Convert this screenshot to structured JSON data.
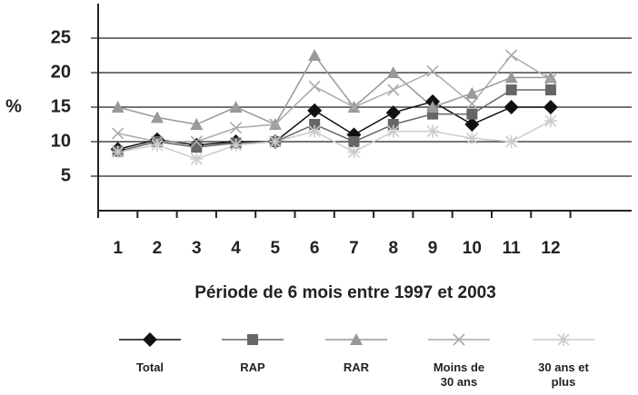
{
  "chart_data": {
    "type": "line",
    "x_label": "Période de 6 mois entre 1997 et 2003",
    "y_label": "%",
    "categories": [
      "1",
      "2",
      "3",
      "4",
      "5",
      "6",
      "7",
      "8",
      "9",
      "10",
      "11",
      "12"
    ],
    "ylim": [
      0,
      30
    ],
    "yticks": [
      5,
      10,
      15,
      20,
      25
    ],
    "grid": true,
    "series": [
      {
        "name": "Total",
        "color": "#111111",
        "marker": "diamond",
        "values": [
          8.9,
          10.3,
          9.5,
          10,
          10,
          14.5,
          11,
          14.2,
          15.8,
          12.5,
          15,
          15
        ]
      },
      {
        "name": "RAP",
        "color": "#666666",
        "marker": "square",
        "values": [
          8.6,
          10,
          9.2,
          9.8,
          10,
          12.5,
          10,
          12.5,
          14,
          14,
          17.5,
          17.5
        ]
      },
      {
        "name": "RAR",
        "color": "#999999",
        "marker": "triangle",
        "values": [
          15,
          13.5,
          12.5,
          15,
          12.5,
          22.5,
          15,
          20,
          15,
          17,
          19.3,
          19.3
        ]
      },
      {
        "name": "Moins de 30 ans",
        "color": "#aaaaaa",
        "marker": "x",
        "values": [
          11.2,
          10,
          10,
          12,
          12.5,
          18,
          15,
          17.5,
          20.2,
          15.5,
          22.5,
          19
        ]
      },
      {
        "name": "30 ans et plus",
        "color": "#cccccc",
        "marker": "star",
        "values": [
          8.5,
          9.5,
          7.5,
          9.5,
          10,
          11.5,
          8.5,
          11.5,
          11.5,
          10.5,
          10,
          13
        ]
      }
    ]
  }
}
